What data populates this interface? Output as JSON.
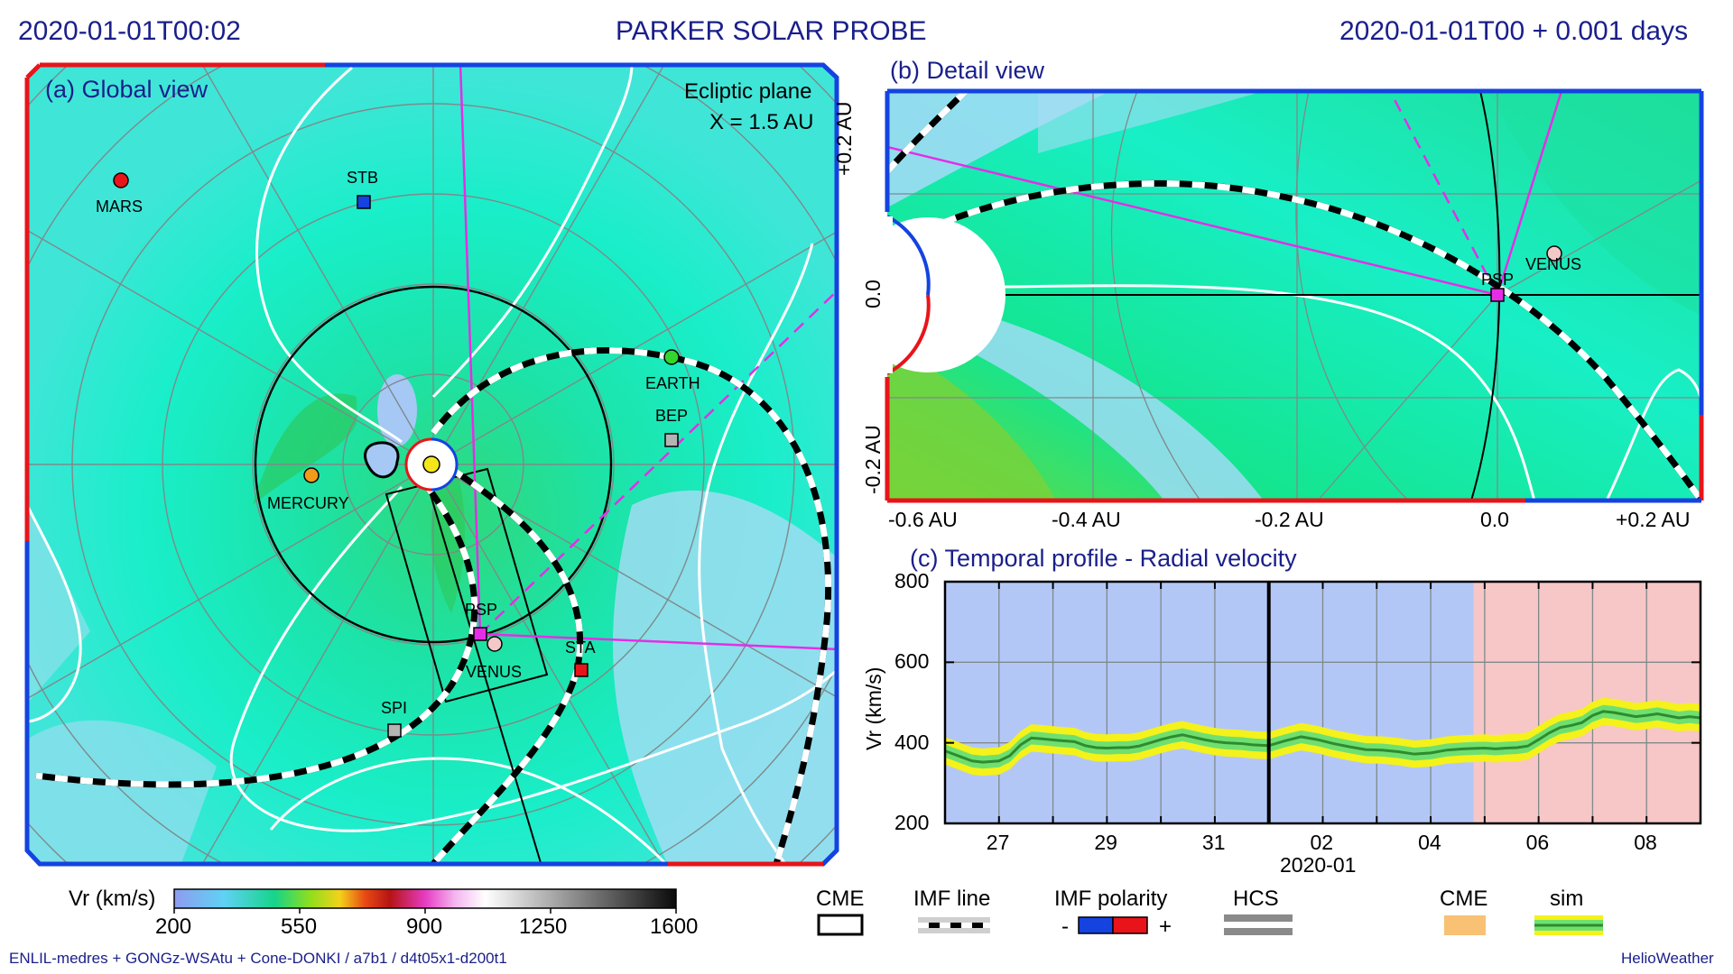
{
  "header": {
    "datetime": "2020-01-01T00:02",
    "title": "PARKER SOLAR PROBE",
    "elapsed": "2020-01-01T00 +  0.001 days"
  },
  "panel_a": {
    "title": "(a) Global view",
    "plane": "Ecliptic plane",
    "scale": "X = 1.5 AU",
    "bodies": [
      {
        "name": "MARS",
        "shape": "circle",
        "color": "#e8141a"
      },
      {
        "name": "STB",
        "shape": "square",
        "color": "#1443e0"
      },
      {
        "name": "EARTH",
        "shape": "circle",
        "color": "#33d62e"
      },
      {
        "name": "BEP",
        "shape": "square",
        "color": "#b4b4b4"
      },
      {
        "name": "MERCURY",
        "shape": "circle",
        "color": "#f29a1a"
      },
      {
        "name": "PSP",
        "shape": "square",
        "color": "#e62de6"
      },
      {
        "name": "VENUS",
        "shape": "circle",
        "color": "#f5c8c8"
      },
      {
        "name": "STA",
        "shape": "square",
        "color": "#e8141a"
      },
      {
        "name": "SPI",
        "shape": "square",
        "color": "#b4b4b4"
      }
    ]
  },
  "panel_b": {
    "title": "(b) Detail view",
    "x_ticks": [
      "-0.6 AU",
      "-0.4 AU",
      "-0.2 AU",
      "0.0",
      "+0.2 AU"
    ],
    "y_ticks": [
      "+0.2 AU",
      "0.0",
      "-0.2 AU"
    ],
    "bodies": [
      {
        "name": "PSP",
        "shape": "square",
        "color": "#e62de6"
      },
      {
        "name": "VENUS",
        "shape": "circle",
        "color": "#f5c8c8"
      }
    ]
  },
  "chart_data": {
    "type": "line",
    "title": "(c) Temporal profile - Radial velocity",
    "ylabel": "Vr (km/s)",
    "xlabel": "2020-01",
    "ylim": [
      200,
      800
    ],
    "y_ticks": [
      200,
      400,
      600,
      800
    ],
    "x_range_days": [
      -6.0,
      8.0
    ],
    "x_ticks": [
      {
        "day": -5,
        "label": "27"
      },
      {
        "day": -3,
        "label": "29"
      },
      {
        "day": -1,
        "label": "31"
      },
      {
        "day": 1,
        "label": "02"
      },
      {
        "day": 3,
        "label": "04"
      },
      {
        "day": 5,
        "label": "06"
      },
      {
        "day": 7,
        "label": "08"
      }
    ],
    "current_time_day": 0.0,
    "polarity_regions": [
      {
        "from": -6.0,
        "to": 3.8,
        "color": "#b3c7f7"
      },
      {
        "from": 3.8,
        "to": 8.0,
        "color": "#f7c6c6"
      }
    ],
    "series": [
      {
        "color": "#2e8b2e",
        "x": [
          -6.0,
          -5.7,
          -5.5,
          -5.3,
          -5.0,
          -4.8,
          -4.6,
          -4.4,
          -4.2,
          -3.9,
          -3.6,
          -3.4,
          -3.2,
          -3.0,
          -2.8,
          -2.6,
          -2.4,
          -2.2,
          -2.0,
          -1.8,
          -1.6,
          -1.4,
          -1.2,
          -1.0,
          -0.8,
          -0.5,
          -0.3,
          0.0,
          0.3,
          0.6,
          0.9,
          1.2,
          1.5,
          1.8,
          2.1,
          2.4,
          2.7,
          3.0,
          3.3,
          3.6,
          3.8,
          4.0,
          4.2,
          4.4,
          4.6,
          4.8,
          5.0,
          5.2,
          5.4,
          5.6,
          5.8,
          6.0,
          6.2,
          6.4,
          6.6,
          6.8,
          7.0,
          7.2,
          7.4,
          7.6,
          7.8,
          8.0
        ],
        "y": [
          380,
          365,
          355,
          352,
          355,
          368,
          395,
          412,
          410,
          406,
          403,
          393,
          388,
          387,
          388,
          388,
          392,
          400,
          408,
          415,
          420,
          414,
          408,
          403,
          400,
          398,
          395,
          393,
          405,
          415,
          408,
          398,
          390,
          383,
          382,
          378,
          372,
          375,
          382,
          385,
          386,
          387,
          385,
          387,
          388,
          392,
          408,
          425,
          438,
          443,
          450,
          468,
          478,
          475,
          470,
          465,
          468,
          472,
          467,
          462,
          465,
          462
        ],
        "band_inner": 16,
        "band_outer": 34
      }
    ]
  },
  "colorbar": {
    "label": "Vr (km/s)",
    "ticks": [
      "200",
      "550",
      "900",
      "1250",
      "1600"
    ]
  },
  "legend": {
    "cme": "CME",
    "imf_line": "IMF line",
    "imf_polarity": "IMF polarity",
    "minus": "-",
    "plus": "+",
    "hcs": "HCS",
    "cme2": "CME",
    "sim": "sim"
  },
  "footer": {
    "left": "ENLIL-medres + GONGz-WSAtu + Cone-DONKI / a7b1 / d4t05x1-d200t1",
    "right": "HelioWeather"
  }
}
